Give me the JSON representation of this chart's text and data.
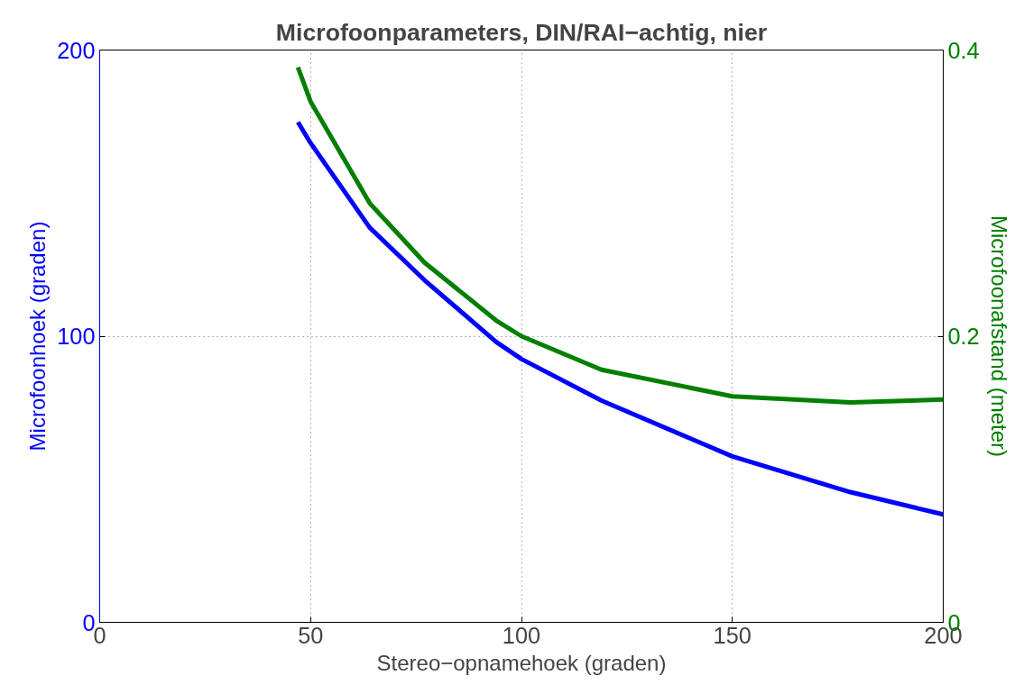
{
  "chart_data": {
    "type": "line",
    "title": "Microfoonparameters, DIN/RAI−achtig, nier",
    "xlabel": "Stereo−opnamehoek (graden)",
    "ylabel": "Microfoonhoek (graden)",
    "y2label": "Microfoonafstand (meter)",
    "x": [
      47,
      50,
      64,
      77,
      94,
      100,
      119,
      150,
      178,
      200
    ],
    "series": [
      {
        "color": "#0000ff",
        "values": [
          174.8,
          167.5,
          138,
          119.6,
          98,
          92,
          77.5,
          58,
          45.5,
          37.7
        ]
      },
      {
        "color": "#007f00",
        "axis": "y2",
        "values": [
          0.388,
          0.364,
          0.293,
          0.2515,
          0.211,
          0.2,
          0.1765,
          0.158,
          0.1537,
          0.1557
        ]
      }
    ],
    "xlim": [
      0,
      200
    ],
    "xticks": [
      0,
      50,
      100,
      150,
      200
    ],
    "ylim": [
      0,
      200
    ],
    "yticks": [
      0,
      100,
      200
    ],
    "y2lim": [
      0,
      0.4
    ],
    "y2ticks": [
      0,
      0.2,
      0.4
    ],
    "grid": true,
    "line_style": "solid",
    "marker": "none"
  }
}
